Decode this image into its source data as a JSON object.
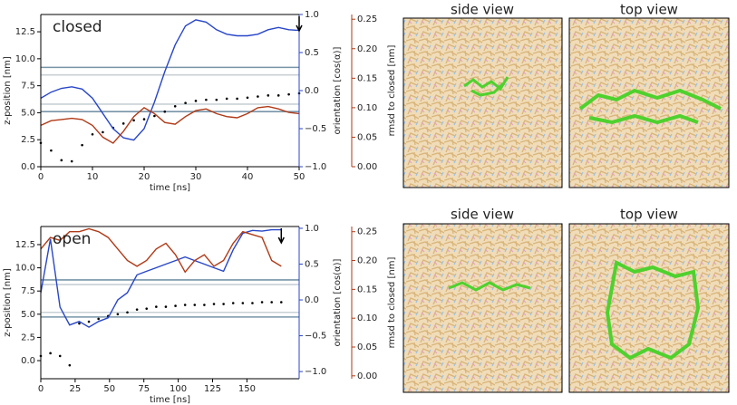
{
  "chart_data": [
    {
      "type": "line",
      "title": "closed",
      "xlabel": "time [ns]",
      "ylabel": "z-position [nm]",
      "y2label": "orientation [cos(α)]",
      "y3label": "rmsd to closed [nm]",
      "x": [
        0,
        2,
        4,
        6,
        8,
        10,
        12,
        14,
        16,
        18,
        20,
        22,
        24,
        26,
        28,
        30,
        32,
        34,
        36,
        38,
        40,
        42,
        44,
        46,
        48,
        50
      ],
      "xlim": [
        0,
        50
      ],
      "xticks": [
        0,
        10,
        20,
        30,
        40,
        50
      ],
      "ylim": [
        0,
        14.1
      ],
      "yticks": [
        {
          "value": 0,
          "label": "0.0"
        },
        2.5,
        {
          "value": 5,
          "label": "5.0"
        },
        7.5,
        {
          "value": 10,
          "label": "10.0"
        },
        12.5
      ],
      "y2lim": [
        -1,
        1
      ],
      "y2ticks": [
        {
          "value": -1,
          "label": "−1.0"
        },
        {
          "value": -0.5,
          "label": "−0.5"
        },
        {
          "value": 0,
          "label": "0.0"
        },
        0.5,
        {
          "value": 1,
          "label": "1.0"
        }
      ],
      "y3lim": [
        0,
        0.258
      ],
      "y3ticks": [
        {
          "value": 0,
          "label": "0.00"
        },
        0.05,
        {
          "value": 0.1,
          "label": "0.10"
        },
        0.15,
        {
          "value": 0.2,
          "label": "0.20"
        },
        0.25
      ],
      "y2color": "#2846c8",
      "y3color": "#b03a17",
      "marker_x": 50,
      "hlines": [
        {
          "value": 9.2,
          "color": "#7895a8"
        },
        {
          "value": 8.5,
          "color": "#c9d0d5"
        },
        {
          "value": 5.8,
          "color": "#c9d0d5"
        },
        {
          "value": 5.1,
          "color": "#7895a8"
        }
      ],
      "series": [
        {
          "color": "#000000",
          "style": "dots",
          "values": [
            2.2,
            1.5,
            0.6,
            0.5,
            2.0,
            3.0,
            3.2,
            3.6,
            4.0,
            4.3,
            4.4,
            4.7,
            5.1,
            5.6,
            5.9,
            6.1,
            6.2,
            6.2,
            6.3,
            6.3,
            6.4,
            6.5,
            6.6,
            6.6,
            6.7,
            6.8
          ]
        },
        {
          "color": "#2846c8",
          "axis": "y2",
          "values": [
            -0.1,
            -0.02,
            0.03,
            0.05,
            0.02,
            -0.1,
            -0.3,
            -0.5,
            -0.62,
            -0.65,
            -0.5,
            -0.15,
            0.25,
            0.6,
            0.85,
            0.93,
            0.9,
            0.8,
            0.74,
            0.72,
            0.72,
            0.74,
            0.8,
            0.83,
            0.8,
            0.79
          ]
        },
        {
          "color": "#b03a17",
          "axis": "y3",
          "values": [
            0.07,
            0.078,
            0.08,
            0.082,
            0.08,
            0.07,
            0.05,
            0.04,
            0.06,
            0.085,
            0.1,
            0.09,
            0.075,
            0.072,
            0.085,
            0.095,
            0.098,
            0.09,
            0.085,
            0.083,
            0.09,
            0.1,
            0.102,
            0.098,
            0.092,
            0.09
          ]
        }
      ]
    },
    {
      "type": "line",
      "title": "open",
      "xlabel": "time [ns]",
      "ylabel": "z-position [nm]",
      "y2label": "orientation [cos(α)]",
      "y3label": "rmsd to closed [nm]",
      "x": [
        0,
        7,
        14,
        21,
        28,
        35,
        42,
        49,
        56,
        63,
        70,
        77,
        84,
        91,
        98,
        105,
        112,
        119,
        126,
        133,
        140,
        147,
        154,
        161,
        168,
        175
      ],
      "xlim": [
        0,
        188
      ],
      "xticks": [
        0,
        25,
        50,
        75,
        100,
        125,
        150
      ],
      "ylim": [
        -1.95,
        14.45
      ],
      "yticks": [
        {
          "value": 0,
          "label": "0.0"
        },
        2.5,
        {
          "value": 5,
          "label": "5.0"
        },
        7.5,
        {
          "value": 10,
          "label": "10.0"
        },
        12.5
      ],
      "y2lim": [
        -1.1,
        1.025
      ],
      "y2ticks": [
        {
          "value": -1,
          "label": "−1.0"
        },
        {
          "value": -0.5,
          "label": "−0.5"
        },
        {
          "value": 0,
          "label": "0.0"
        },
        0.5,
        {
          "value": 1,
          "label": "1.0"
        }
      ],
      "y3lim": [
        -0.005,
        0.259
      ],
      "y3ticks": [
        {
          "value": 0,
          "label": "0.00"
        },
        0.05,
        {
          "value": 0.1,
          "label": "0.10"
        },
        0.15,
        {
          "value": 0.2,
          "label": "0.20"
        },
        0.25
      ],
      "y2color": "#2846c8",
      "y3color": "#b03a17",
      "marker_x": 175,
      "hlines": [
        {
          "value": 8.7,
          "color": "#7895a8"
        },
        {
          "value": 8.2,
          "color": "#c9d0d5"
        },
        {
          "value": 5.2,
          "color": "#c9d0d5"
        },
        {
          "value": 4.7,
          "color": "#7895a8"
        }
      ],
      "series": [
        {
          "color": "#000000",
          "style": "dots",
          "values": [
            0.5,
            0.8,
            0.5,
            -0.5,
            4.0,
            4.2,
            4.5,
            4.8,
            5.0,
            5.2,
            5.5,
            5.6,
            5.8,
            5.8,
            5.9,
            6.0,
            6.0,
            6.0,
            6.1,
            6.1,
            6.2,
            6.2,
            6.2,
            6.3,
            6.3,
            6.3
          ]
        },
        {
          "color": "#2846c8",
          "axis": "y2",
          "values": [
            0.1,
            0.85,
            -0.1,
            -0.35,
            -0.3,
            -0.38,
            -0.3,
            -0.25,
            0.0,
            0.1,
            0.35,
            0.4,
            0.45,
            0.5,
            0.55,
            0.6,
            0.55,
            0.5,
            0.45,
            0.4,
            0.7,
            0.93,
            0.97,
            0.96,
            0.98,
            0.98
          ]
        },
        {
          "color": "#b03a17",
          "axis": "y3",
          "values": [
            0.22,
            0.24,
            0.235,
            0.25,
            0.25,
            0.255,
            0.25,
            0.24,
            0.22,
            0.2,
            0.19,
            0.2,
            0.22,
            0.23,
            0.21,
            0.18,
            0.2,
            0.21,
            0.19,
            0.2,
            0.23,
            0.25,
            0.245,
            0.24,
            0.2,
            0.19
          ]
        }
      ]
    }
  ],
  "images": [
    {
      "labels": [
        "side view",
        "top view"
      ]
    },
    {
      "labels": [
        "side view",
        "top view"
      ]
    }
  ]
}
